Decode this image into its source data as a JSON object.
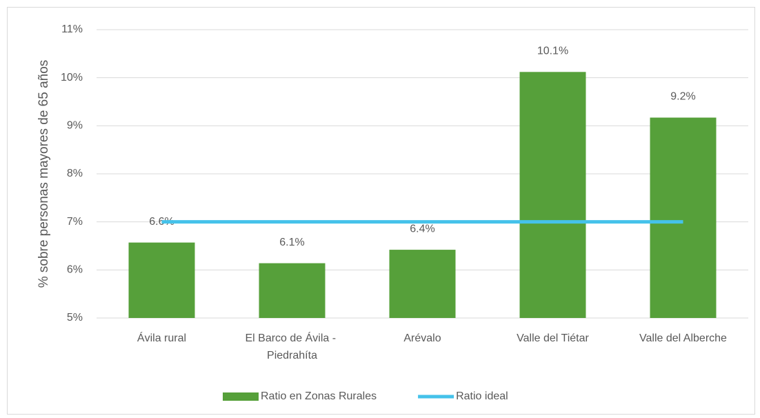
{
  "chart_data": {
    "type": "bar_line",
    "y_axis_label": "% sobre personas mayores de 65 años",
    "categories": [
      "Ávila rural",
      "El Barco de Ávila - Piedrahíta",
      "Arévalo",
      "Valle del Tiétar",
      "Valle del Alberche"
    ],
    "series": [
      {
        "name": "Ratio en Zonas Rurales",
        "type": "bar",
        "color": "#56a03a",
        "values": [
          6.57,
          6.14,
          6.42,
          10.12,
          9.17
        ],
        "value_labels": [
          "6.6%",
          "6.1%",
          "6.4%",
          "10.1%",
          "9.2%"
        ]
      },
      {
        "name": "Ratio ideal",
        "type": "line",
        "color": "#45c2ea",
        "values": [
          7,
          7,
          7,
          7,
          7
        ]
      }
    ],
    "ylim": [
      5,
      11
    ],
    "yticks": [
      {
        "value": 5,
        "label": "5%"
      },
      {
        "value": 6,
        "label": "6%"
      },
      {
        "value": 7,
        "label": "7%"
      },
      {
        "value": 8,
        "label": "8%"
      },
      {
        "value": 9,
        "label": "9%"
      },
      {
        "value": 10,
        "label": "10%"
      },
      {
        "value": 11,
        "label": "11%"
      }
    ],
    "grid": true,
    "legend": "bottom"
  }
}
